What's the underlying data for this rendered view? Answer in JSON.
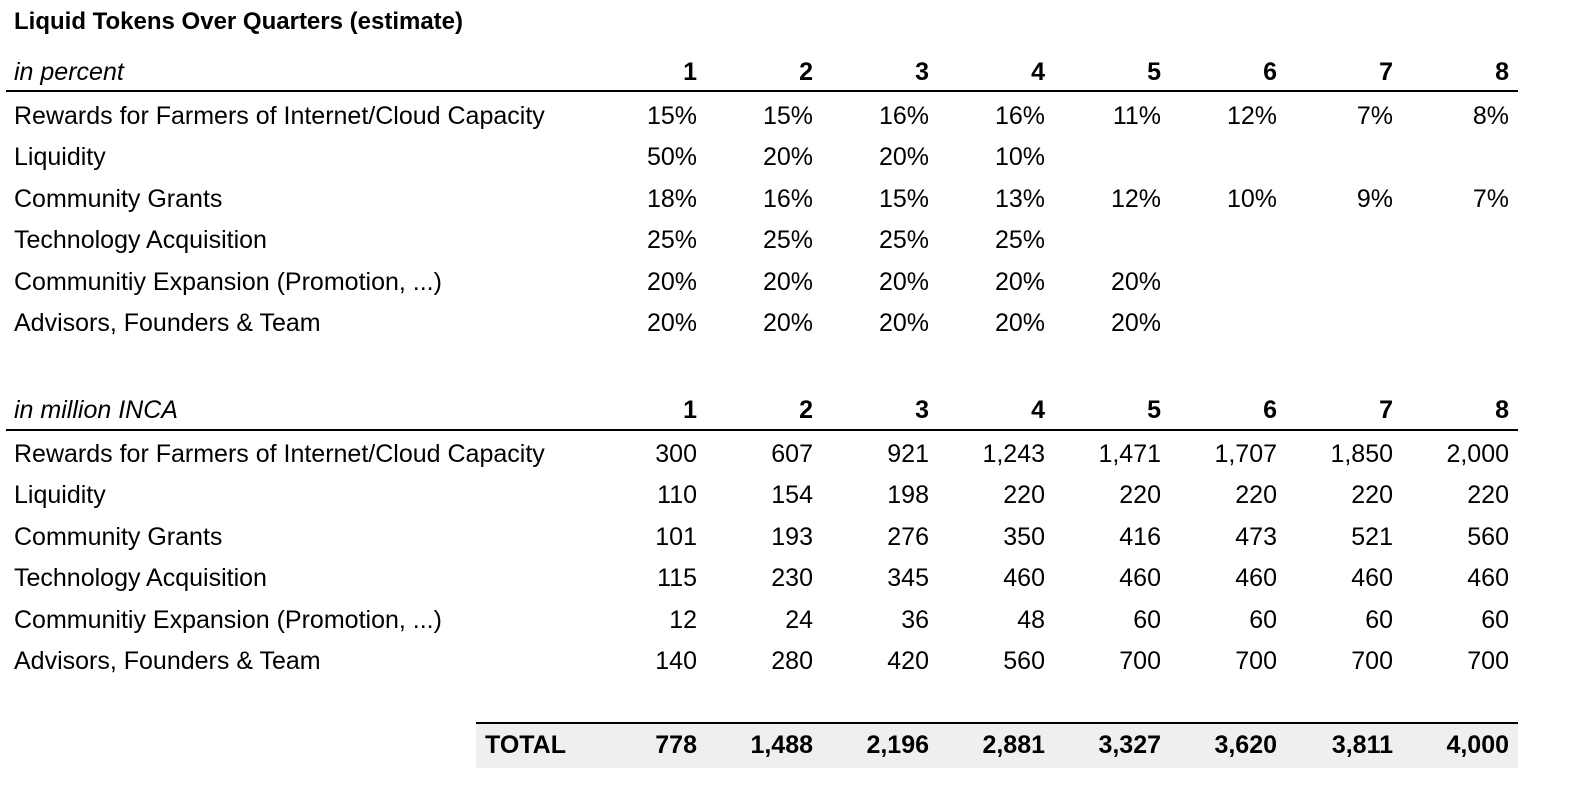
{
  "title": "Liquid Tokens Over Quarters (estimate)",
  "quarters": [
    "1",
    "2",
    "3",
    "4",
    "5",
    "6",
    "7",
    "8"
  ],
  "percent_table": {
    "header": "in percent",
    "rows": [
      {
        "label": "Rewards for Farmers of Internet/Cloud Capacity",
        "values": [
          "15%",
          "15%",
          "16%",
          "16%",
          "11%",
          "12%",
          "7%",
          "8%"
        ]
      },
      {
        "label": "Liquidity",
        "values": [
          "50%",
          "20%",
          "20%",
          "10%",
          "",
          "",
          "",
          ""
        ]
      },
      {
        "label": "Community Grants",
        "values": [
          "18%",
          "16%",
          "15%",
          "13%",
          "12%",
          "10%",
          "9%",
          "7%"
        ]
      },
      {
        "label": "Technology Acquisition",
        "values": [
          "25%",
          "25%",
          "25%",
          "25%",
          "",
          "",
          "",
          ""
        ]
      },
      {
        "label": "Communitiy Expansion (Promotion, ...)",
        "values": [
          "20%",
          "20%",
          "20%",
          "20%",
          "20%",
          "",
          "",
          ""
        ]
      },
      {
        "label": "Advisors, Founders & Team",
        "values": [
          "20%",
          "20%",
          "20%",
          "20%",
          "20%",
          "",
          "",
          ""
        ]
      }
    ]
  },
  "million_table": {
    "header": "in million INCA",
    "rows": [
      {
        "label": "Rewards for Farmers of Internet/Cloud Capacity",
        "values": [
          "300",
          "607",
          "921",
          "1,243",
          "1,471",
          "1,707",
          "1,850",
          "2,000"
        ]
      },
      {
        "label": "Liquidity",
        "values": [
          "110",
          "154",
          "198",
          "220",
          "220",
          "220",
          "220",
          "220"
        ]
      },
      {
        "label": "Community Grants",
        "values": [
          "101",
          "193",
          "276",
          "350",
          "416",
          "473",
          "521",
          "560"
        ]
      },
      {
        "label": "Technology Acquisition",
        "values": [
          "115",
          "230",
          "345",
          "460",
          "460",
          "460",
          "460",
          "460"
        ]
      },
      {
        "label": "Communitiy Expansion (Promotion, ...)",
        "values": [
          "12",
          "24",
          "36",
          "48",
          "60",
          "60",
          "60",
          "60"
        ]
      },
      {
        "label": "Advisors, Founders & Team",
        "values": [
          "140",
          "280",
          "420",
          "560",
          "700",
          "700",
          "700",
          "700"
        ]
      }
    ]
  },
  "total": {
    "label": "TOTAL",
    "values": [
      "778",
      "1,488",
      "2,196",
      "2,881",
      "3,327",
      "3,620",
      "3,811",
      "4,000"
    ]
  }
}
